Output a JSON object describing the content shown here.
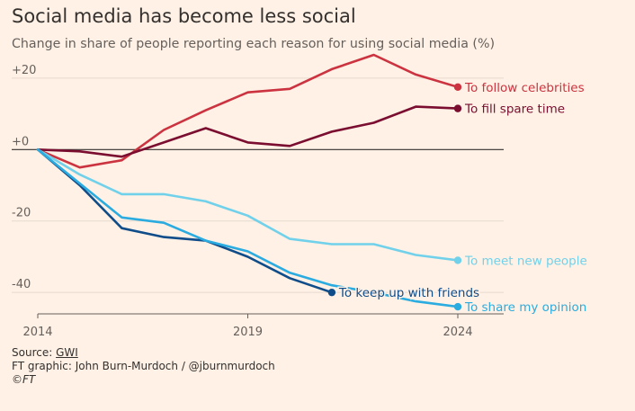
{
  "title": "Social media has become less social",
  "subtitle": "Change in share of people reporting each reason for using social media (%)",
  "footer": {
    "source_label": "Source: ",
    "source_name": "GWI",
    "credit": "FT graphic: John Burn-Murdoch / @jburnmurdoch",
    "copyright": "©FT"
  },
  "chart_data": {
    "type": "line",
    "x": [
      2014,
      2015,
      2016,
      2017,
      2018,
      2019,
      2020,
      2021,
      2022,
      2023,
      2024
    ],
    "xlim": [
      2014,
      2024
    ],
    "ylim": [
      -46,
      25
    ],
    "x_ticks": [
      2014,
      2019,
      2024
    ],
    "y_ticks": [
      20,
      0,
      -20,
      -40
    ],
    "y_tick_labels": [
      "+20",
      "+0",
      "-20",
      "-40"
    ],
    "grid": "horizontal",
    "legend": "direct labels at line ends",
    "series": [
      {
        "name": "To follow celebrities",
        "color": "#cc3340",
        "values": [
          0,
          -5,
          -3,
          5.5,
          11,
          16,
          17,
          22.5,
          26.5,
          21,
          17.5
        ]
      },
      {
        "name": "To fill spare time",
        "color": "#7a0d30",
        "values": [
          0,
          -0.5,
          -2,
          2,
          6,
          2,
          1,
          5,
          7.5,
          12,
          11.5
        ]
      },
      {
        "name": "To meet new people",
        "color": "#71d1eb",
        "values": [
          0,
          -7,
          -12.5,
          -12.5,
          -14.5,
          -18.5,
          -25,
          -26.5,
          -26.5,
          -29.5,
          -31
        ]
      },
      {
        "name": "To keep up with friends",
        "color": "#0f4c8a",
        "values": [
          0,
          -10,
          -22,
          -24.5,
          -25.5,
          -30,
          -36,
          -40,
          null,
          null,
          null
        ]
      },
      {
        "name": "To share my opinion",
        "color": "#2bace0",
        "values": [
          0,
          -9.5,
          -19,
          -20.5,
          -25.5,
          -28.5,
          -34.5,
          -38,
          -40,
          -42.5,
          -44
        ]
      }
    ]
  }
}
